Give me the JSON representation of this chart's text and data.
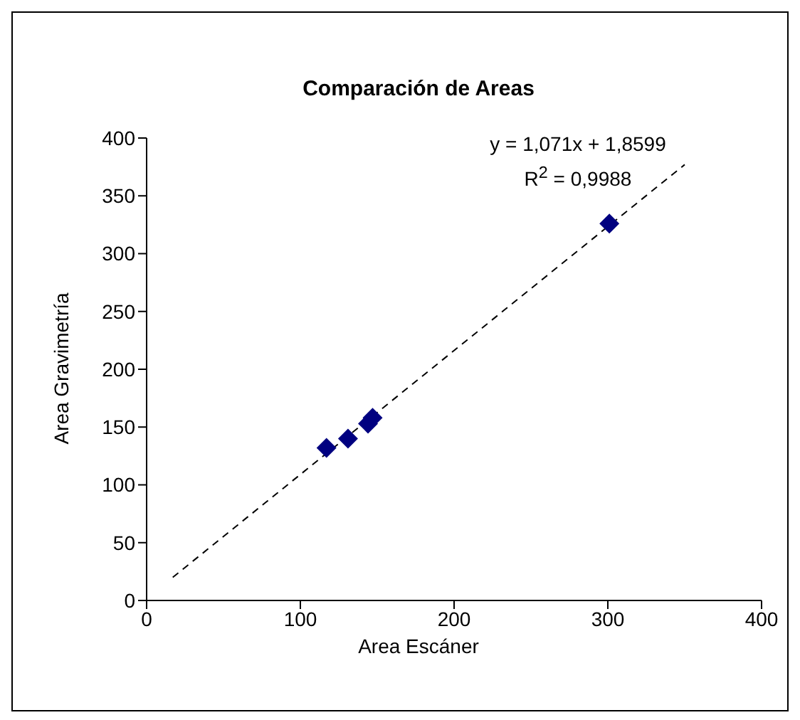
{
  "chart_data": {
    "type": "scatter",
    "title": "Comparación de Areas",
    "xlabel": "Area Escáner",
    "ylabel": "Area Gravimetría",
    "annotations": [
      "y = 1,071x + 1,8599",
      "R$^{2}$ = 0,9988"
    ],
    "xlim": [
      0,
      400
    ],
    "xticks": [
      0,
      100,
      200,
      300,
      400
    ],
    "ylim": [
      0,
      400
    ],
    "yticks": [
      0,
      50,
      100,
      150,
      200,
      250,
      300,
      350,
      400
    ],
    "grid": false,
    "legend": false,
    "series": [
      {
        "color": "#000080",
        "marker": "diamond",
        "x": [
          117,
          131,
          144,
          147,
          301
        ],
        "values": [
          132,
          140,
          153,
          158,
          326
        ]
      },
      {
        "type": "line",
        "color": "#000000",
        "line_style": "dashed",
        "marker": "none",
        "x": [
          17,
          350
        ],
        "values": [
          20,
          377
        ]
      }
    ]
  }
}
